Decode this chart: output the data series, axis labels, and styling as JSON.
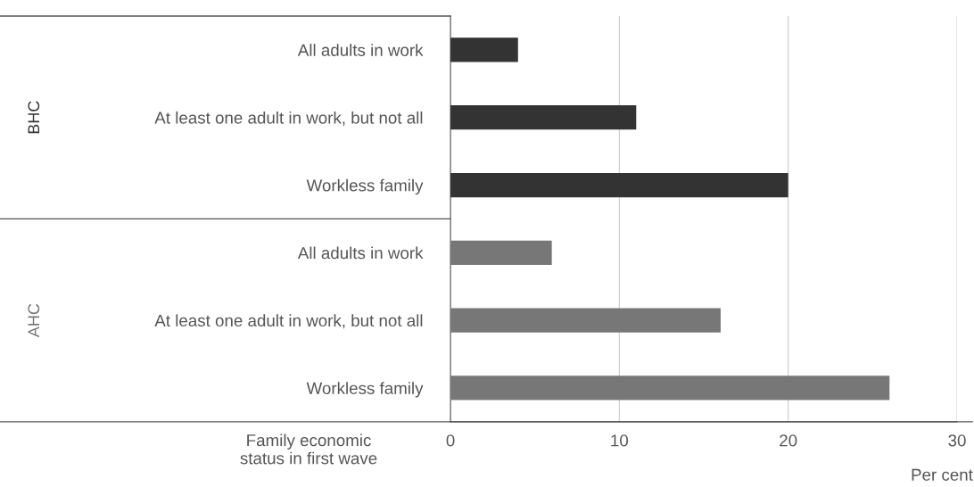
{
  "chart_data": {
    "type": "bar",
    "orientation": "horizontal",
    "categories": [
      "All adults in work",
      "At least one adult in work, but not all",
      "Workless family",
      "All adults in work",
      "At least one adult in work, but not all",
      "Workless family"
    ],
    "series": [
      {
        "name": "BHC",
        "color": "#333333",
        "values": [
          4,
          11,
          20,
          null,
          null,
          null
        ]
      },
      {
        "name": "AHC",
        "color": "#777777",
        "values": [
          null,
          null,
          null,
          6,
          16,
          26
        ]
      }
    ],
    "xlim": [
      0,
      30
    ],
    "xticks": [
      0,
      10,
      20,
      30
    ],
    "xlabel": "Per cent",
    "ylabel": "Family economic\nstatus in first wave",
    "grid": "x",
    "legend": false
  }
}
